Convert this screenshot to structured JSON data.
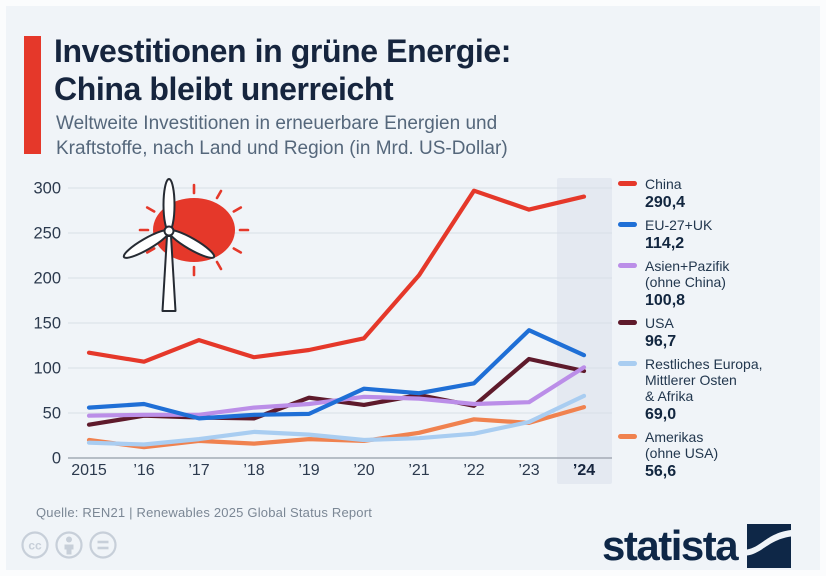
{
  "header": {
    "title_line1": "Investitionen in grüne Energie:",
    "title_line2": "China bleibt unerreicht",
    "subtitle_line1": "Weltweite Investitionen in erneuerbare Energien und",
    "subtitle_line2": "Kraftstoffe, nach Land und Region (in Mrd. US-Dollar)"
  },
  "chart_data": {
    "type": "line",
    "title": "Weltweite Investitionen in erneuerbare Energien und Kraftstoffe, nach Land und Region (in Mrd. US-Dollar)",
    "xlabel": "",
    "ylabel": "",
    "x_labels": [
      "2015",
      "’16",
      "’17",
      "’18",
      "’19",
      "’20",
      "’21",
      "’22",
      "’23",
      "’24"
    ],
    "highlight_x": "’24",
    "ylim": [
      0,
      300
    ],
    "yticks": [
      0,
      50,
      100,
      150,
      200,
      250,
      300
    ],
    "grid": true,
    "legend_position": "right",
    "series": [
      {
        "name": "China",
        "color": "#e5382a",
        "values": [
          117,
          107,
          131,
          112,
          120,
          133,
          203,
          297,
          276,
          290.4
        ],
        "final_label": "290,4"
      },
      {
        "name": "EU-27+UK",
        "color": "#1f6fd6",
        "values": [
          56,
          60,
          44,
          48,
          49,
          77,
          72,
          83,
          142,
          114.2
        ],
        "final_label": "114,2"
      },
      {
        "name": "Asien+Pazifik (ohne China)",
        "color": "#bb8ee8",
        "values": [
          47,
          48,
          48,
          56,
          60,
          68,
          66,
          60,
          62,
          100.8
        ],
        "final_label": "100,8"
      },
      {
        "name": "USA",
        "color": "#5e1a2b",
        "values": [
          37,
          47,
          45,
          44,
          67,
          59,
          70,
          58,
          110,
          96.7
        ],
        "final_label": "96,7"
      },
      {
        "name": "Restliches Europa, Mittlerer Osten & Afrika",
        "color": "#a9cdf1",
        "values": [
          17,
          15,
          21,
          29,
          26,
          20,
          22,
          27,
          40,
          69.0
        ],
        "final_label": "69,0"
      },
      {
        "name": "Amerikas (ohne USA)",
        "color": "#f0824f",
        "values": [
          20,
          12,
          19,
          16,
          21,
          19,
          28,
          43,
          39,
          56.6
        ],
        "final_label": "56,6"
      }
    ]
  },
  "legend": {
    "items": [
      {
        "label_lines": [
          "China"
        ],
        "value": "290,4",
        "color": "#e5382a"
      },
      {
        "label_lines": [
          "EU-27+UK"
        ],
        "value": "114,2",
        "color": "#1f6fd6"
      },
      {
        "label_lines": [
          "Asien+Pazifik",
          "(ohne China)"
        ],
        "value": "100,8",
        "color": "#bb8ee8"
      },
      {
        "label_lines": [
          "USA"
        ],
        "value": "96,7",
        "color": "#5e1a2b"
      },
      {
        "label_lines": [
          "Restliches Europa,",
          "Mittlerer Osten",
          "& Afrika"
        ],
        "value": "69,0",
        "color": "#a9cdf1"
      },
      {
        "label_lines": [
          "Amerikas",
          "(ohne USA)"
        ],
        "value": "56,6",
        "color": "#f0824f"
      }
    ]
  },
  "footer": {
    "source": "Quelle: REN21 | Renewables 2025 Global Status Report",
    "logo_text": "statista"
  },
  "colors": {
    "background": "#f0f4f8",
    "accent_red": "#e5382a",
    "title_navy": "#16253e",
    "subtitle_gray": "#55677b",
    "grid": "#d9dfe6",
    "axis_line": "#a3abb6",
    "band": "#e4e9f1",
    "cc_gray": "#c7cfd9",
    "brand_navy": "#0e2747"
  }
}
